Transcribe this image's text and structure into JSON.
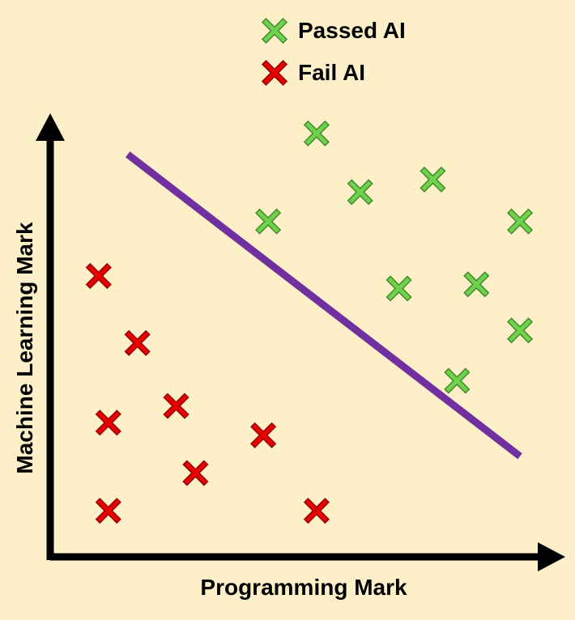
{
  "chart_data": {
    "type": "scatter",
    "title": "",
    "xlabel": "Programming Mark",
    "ylabel": "Machine Learning Mark",
    "xlim": [
      0,
      100
    ],
    "ylim": [
      0,
      100
    ],
    "grid": false,
    "legend_position": "top",
    "series": [
      {
        "name": "Passed AI",
        "color": "#6dd34a",
        "marker": "x",
        "points": [
          {
            "x": 55,
            "y": 101
          },
          {
            "x": 45,
            "y": 80
          },
          {
            "x": 64,
            "y": 87
          },
          {
            "x": 79,
            "y": 90
          },
          {
            "x": 97,
            "y": 80
          },
          {
            "x": 72,
            "y": 64
          },
          {
            "x": 88,
            "y": 65
          },
          {
            "x": 97,
            "y": 54
          },
          {
            "x": 84,
            "y": 42
          }
        ]
      },
      {
        "name": "Fail AI",
        "color": "#e60000",
        "marker": "x",
        "points": [
          {
            "x": 10,
            "y": 67
          },
          {
            "x": 18,
            "y": 51
          },
          {
            "x": 26,
            "y": 36
          },
          {
            "x": 12,
            "y": 32
          },
          {
            "x": 30,
            "y": 20
          },
          {
            "x": 44,
            "y": 29
          },
          {
            "x": 12,
            "y": 11
          },
          {
            "x": 55,
            "y": 11
          }
        ]
      }
    ],
    "decision_boundary": {
      "color": "#7030a0",
      "start": {
        "x": 16,
        "y": 96
      },
      "end": {
        "x": 97,
        "y": 24
      }
    }
  }
}
